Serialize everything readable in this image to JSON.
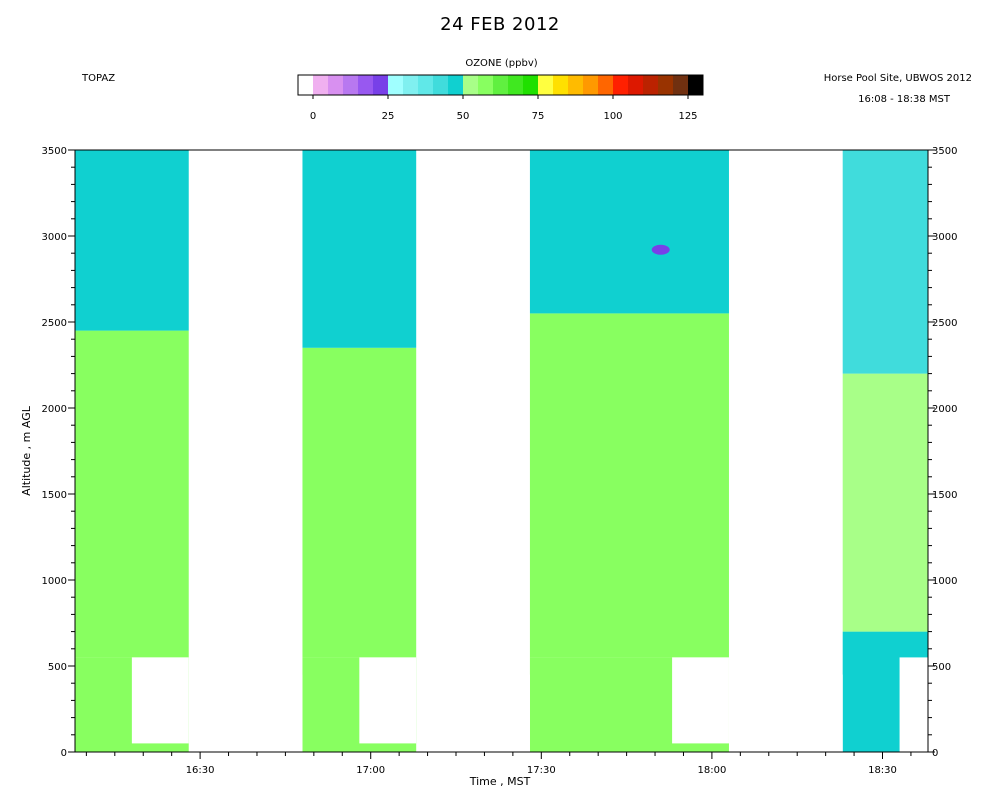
{
  "header": {
    "date_title": "24 FEB 2012",
    "instrument": "TOPAZ",
    "site": "Horse Pool Site, UBWOS 2012",
    "time_span": "16:08 - 18:38 MST"
  },
  "colorbar": {
    "title": "OZONE (ppbv)",
    "min": 0,
    "max": 125,
    "step": 5,
    "tick_labels": [
      "0",
      "25",
      "50",
      "75",
      "100",
      "125"
    ],
    "colors": [
      "#ffffff",
      "#f0b0f0",
      "#d890f0",
      "#b878f0",
      "#9858f0",
      "#7840e8",
      "#a0ffff",
      "#80f0f0",
      "#60e8e8",
      "#40dcdc",
      "#10d0d0",
      "#a8ff88",
      "#88ff60",
      "#60f040",
      "#40e820",
      "#20e000",
      "#ffff40",
      "#ffe000",
      "#ffbb00",
      "#ff9900",
      "#ff6600",
      "#ff2000",
      "#dd1800",
      "#bb2200",
      "#993300",
      "#703010",
      "#000000"
    ]
  },
  "chart_data": {
    "type": "heatmap",
    "title": "24 FEB 2012",
    "xlabel": "Time , MST",
    "ylabel": "Altitude , m AGL",
    "x_ticks": [
      "16:30",
      "17:00",
      "17:30",
      "18:00",
      "18:30"
    ],
    "y_ticks": [
      "0",
      "500",
      "1000",
      "1500",
      "2000",
      "2500",
      "3000",
      "3500"
    ],
    "xlim": [
      "16:08",
      "18:38"
    ],
    "ylim": [
      0,
      3500
    ],
    "z_label": "OZONE (ppbv)",
    "z_range": [
      0,
      125
    ],
    "segments": [
      {
        "start": "16:08",
        "end": "16:28",
        "layers": [
          {
            "from": 0,
            "to": 550,
            "ppbv": 55
          },
          {
            "from": 550,
            "to": 2450,
            "ppbv": 56
          },
          {
            "from": 2450,
            "to": 3500,
            "ppbv": 47
          }
        ]
      },
      {
        "start": "16:48",
        "end": "17:08",
        "layers": [
          {
            "from": 0,
            "to": 550,
            "ppbv": 55
          },
          {
            "from": 550,
            "to": 2350,
            "ppbv": 57
          },
          {
            "from": 2350,
            "to": 3500,
            "ppbv": 46
          }
        ]
      },
      {
        "start": "17:28",
        "end": "18:03",
        "layers": [
          {
            "from": 0,
            "to": 550,
            "ppbv": 55
          },
          {
            "from": 550,
            "to": 2550,
            "ppbv": 58
          },
          {
            "from": 2550,
            "to": 3500,
            "ppbv": 46
          }
        ]
      },
      {
        "start": "18:23",
        "end": "18:38",
        "layers": [
          {
            "from": 0,
            "to": 700,
            "ppbv": 48
          },
          {
            "from": 700,
            "to": 2200,
            "ppbv": 54
          },
          {
            "from": 2200,
            "to": 3500,
            "ppbv": 44
          }
        ]
      }
    ],
    "gaps_low_level": [
      {
        "start": "16:18",
        "end": "16:28",
        "from": 50,
        "to": 550
      },
      {
        "start": "16:33",
        "end": "16:48",
        "from": 0,
        "to": 450
      },
      {
        "start": "16:58",
        "end": "17:08",
        "from": 50,
        "to": 550
      },
      {
        "start": "17:13",
        "end": "17:28",
        "from": 0,
        "to": 450
      },
      {
        "start": "17:53",
        "end": "18:03",
        "from": 50,
        "to": 550
      },
      {
        "start": "18:08",
        "end": "18:23",
        "from": 0,
        "to": 450
      },
      {
        "start": "18:33",
        "end": "18:38",
        "from": 0,
        "to": 550
      }
    ],
    "annotations": [
      {
        "time": "17:51",
        "altitude": 2920,
        "ppbv": 20
      }
    ]
  }
}
